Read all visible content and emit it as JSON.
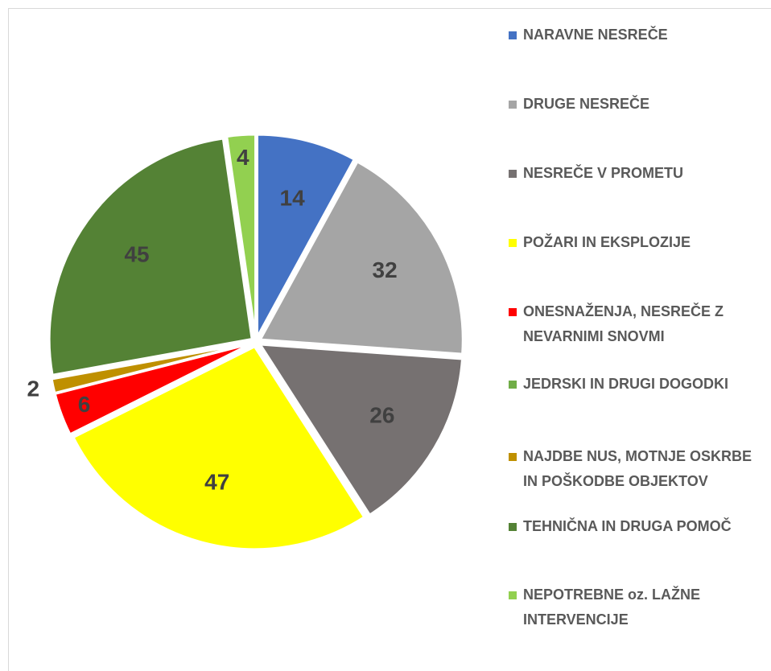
{
  "chart_data": {
    "type": "pie",
    "categories": [
      "NARAVNE NESREČE",
      "DRUGE NESREČE",
      "NESREČE V PROMETU",
      "POŽARI IN EKSPLOZIJE",
      "ONESNAŽENJA, NESREČE Z NEVARNIMI SNOVMI",
      "JEDRSKI IN DRUGI DOGODKI",
      "NAJDBE NUS, MOTNJE OSKRBE IN POŠKODBE OBJEKTOV",
      "TEHNIČNA IN DRUGA POMOČ",
      "NEPOTREBNE oz. LAŽNE INTERVENCIJE"
    ],
    "values": [
      14,
      32,
      26,
      47,
      6,
      0,
      2,
      45,
      4
    ],
    "colors": [
      "#4472c4",
      "#a5a5a5",
      "#767171",
      "#ffff00",
      "#ff0000",
      "#70ad47",
      "#bf9000",
      "#548235",
      "#92d050"
    ],
    "legend": "right"
  }
}
